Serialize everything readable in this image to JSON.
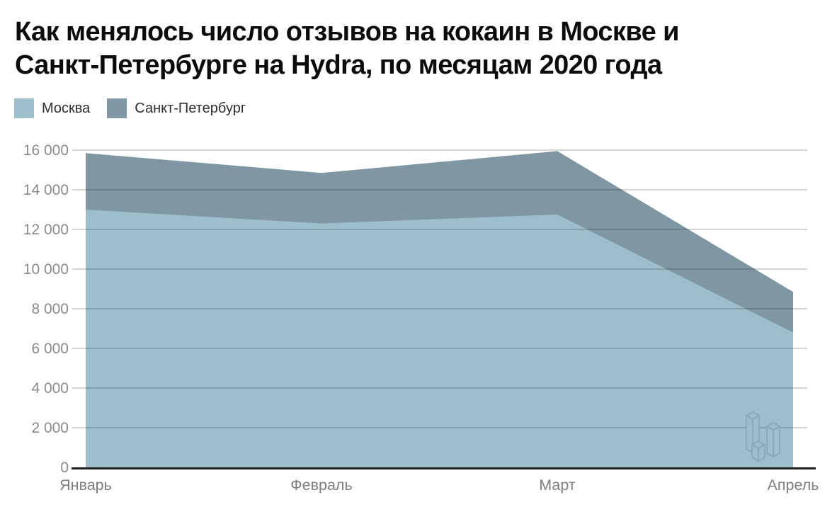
{
  "title_lines": [
    "Как менялось число отзывов на кокаин в Москве и",
    "Санкт-Петербурге на Hydra, по месяцам 2020 года"
  ],
  "legend": [
    {
      "label": "Москва",
      "color": "#9dbfcc"
    },
    {
      "label": "Санкт-Петербург",
      "color": "#7f96a3"
    }
  ],
  "chart_data": {
    "type": "area",
    "stacked": true,
    "title": "Как менялось число отзывов на кокаин в Москве и Санкт-Петербурге на Hydra, по месяцам 2020 года",
    "categories": [
      "Январь",
      "Февраль",
      "Март",
      "Апрель"
    ],
    "series": [
      {
        "name": "Москва",
        "color": "#9dbfcc",
        "values": [
          13000,
          12300,
          12750,
          6800
        ]
      },
      {
        "name": "Санкт-Петербург",
        "color": "#7f96a3",
        "values": [
          2850,
          2550,
          3200,
          2050
        ]
      }
    ],
    "stacked_totals": [
      15850,
      14850,
      15950,
      8850
    ],
    "xlabel": "",
    "ylabel": "",
    "ylim": [
      0,
      16000
    ],
    "ytick_step": 2000,
    "ytick_labels": [
      "0",
      "2 000",
      "4 000",
      "6 000",
      "8 000",
      "10 000",
      "12 000",
      "14 000",
      "16 000"
    ],
    "grid": "horizontal",
    "legend_position": "top-left"
  },
  "colors": {
    "background": "#ffffff",
    "gridline": "rgba(0,0,0,0.16)",
    "axis_line": "#1f1f1f",
    "tick_label": "#8a8a8a",
    "watermark_stroke": "#85a6b5",
    "watermark_fill": "#9dbfcc"
  }
}
